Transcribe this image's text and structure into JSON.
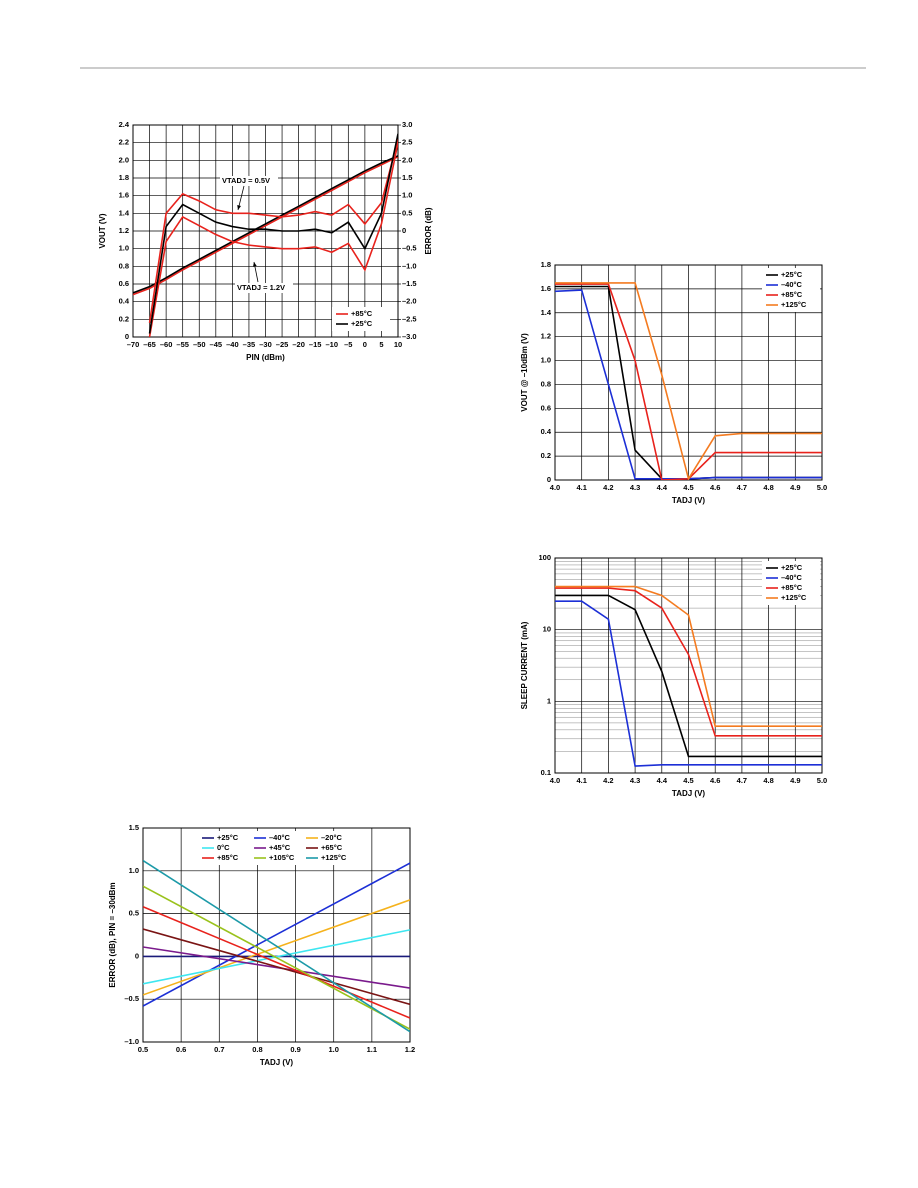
{
  "chart_data": [
    {
      "type": "line",
      "x_label": "PIN (dBm)",
      "y_label": "VOUT (V)",
      "y2_label": "ERROR (dB)",
      "annotations": [
        "VTADJ = 0.5V",
        "VTADJ = 1.2V"
      ],
      "xlim": [
        -70,
        10
      ],
      "ylim": [
        0,
        2.4
      ],
      "y2lim": [
        -3,
        3
      ],
      "grid": true,
      "legend": "lower right",
      "xticks": [
        {
          "value": -70,
          "label": "–70"
        },
        {
          "value": -65,
          "label": "–65"
        },
        {
          "value": -60,
          "label": "–60"
        },
        {
          "value": -55,
          "label": "–55"
        },
        {
          "value": -50,
          "label": "–50"
        },
        {
          "value": -45,
          "label": "–45"
        },
        {
          "value": -40,
          "label": "–40"
        },
        {
          "value": -35,
          "label": "–35"
        },
        {
          "value": -30,
          "label": "–30"
        },
        {
          "value": -25,
          "label": "–25"
        },
        {
          "value": -20,
          "label": "–20"
        },
        {
          "value": -15,
          "label": "–15"
        },
        {
          "value": -10,
          "label": "–10"
        },
        {
          "value": -5,
          "label": "–5"
        },
        0,
        5,
        10
      ],
      "yticks": [
        0,
        0.2,
        0.4,
        0.6,
        0.8,
        {
          "value": 1,
          "label": "1.0"
        },
        1.2,
        1.4,
        1.6,
        1.8,
        {
          "value": 2,
          "label": "2.0"
        },
        2.2,
        2.4
      ],
      "y2ticks": [
        {
          "value": -3,
          "label": "–3.0"
        },
        {
          "value": -2.5,
          "label": "–2.5"
        },
        {
          "value": -2,
          "label": "–2.0"
        },
        {
          "value": -1.5,
          "label": "–1.5"
        },
        {
          "value": -1,
          "label": "–1.0"
        },
        {
          "value": -0.5,
          "label": "–0.5"
        },
        0,
        0.5,
        {
          "value": 1,
          "label": "1.0"
        },
        1.5,
        {
          "value": 2,
          "label": "2.0"
        },
        2.5,
        {
          "value": 3,
          "label": "3.0"
        }
      ],
      "x": [
        -70,
        -65,
        -60,
        -55,
        -50,
        -45,
        -40,
        -35,
        -30,
        -25,
        -20,
        -15,
        -10,
        -5,
        0,
        5,
        10
      ],
      "series": [
        {
          "name": "+85°C",
          "color": "#e8221c",
          "values": [
            0.48,
            0.55,
            0.65,
            0.76,
            0.86,
            0.96,
            1.06,
            1.16,
            1.26,
            1.36,
            1.46,
            1.56,
            1.66,
            1.76,
            1.86,
            1.95,
            2.04
          ]
        },
        {
          "name": "+25°C",
          "color": "#000000",
          "values": [
            0.5,
            0.57,
            0.67,
            0.78,
            0.88,
            0.98,
            1.08,
            1.18,
            1.28,
            1.38,
            1.48,
            1.58,
            1.68,
            1.78,
            1.88,
            1.97,
            2.05
          ]
        },
        {
          "name": "+85°C",
          "color": "#e8221c",
          "axis": "y2",
          "values": [
            null,
            -2.6,
            0.5,
            1.05,
            0.85,
            0.6,
            0.5,
            0.5,
            0.45,
            0.4,
            0.45,
            0.55,
            0.45,
            0.75,
            0.2,
            0.8,
            2.6
          ]
        },
        {
          "name": "+85°C",
          "color": "#e8221c",
          "axis": "y2",
          "values": [
            null,
            -3,
            -0.3,
            0.4,
            0.15,
            -0.1,
            -0.3,
            -0.4,
            -0.45,
            -0.5,
            -0.5,
            -0.45,
            -0.6,
            -0.35,
            -1.1,
            0.2,
            2.5
          ]
        },
        {
          "name": "+25°C",
          "color": "#000000",
          "axis": "y2",
          "values": [
            null,
            -2.9,
            0.125,
            0.75,
            0.5,
            0.25,
            0.125,
            0.05,
            0.05,
            0,
            0,
            0.05,
            -0.05,
            0.25,
            -0.5,
            0.5,
            2.75
          ]
        }
      ]
    },
    {
      "type": "line",
      "x_label": "TADJ (V)",
      "y_label": "VOUT @ –10dBm (V)",
      "xlim": [
        4,
        5
      ],
      "ylim": [
        0,
        1.8
      ],
      "grid": true,
      "legend": "upper right",
      "xticks": [
        {
          "value": 4,
          "label": "4.0"
        },
        4.1,
        4.2,
        4.3,
        4.4,
        4.5,
        4.6,
        4.7,
        4.8,
        4.9,
        {
          "value": 5,
          "label": "5.0"
        }
      ],
      "yticks": [
        0,
        0.2,
        0.4,
        0.6,
        0.8,
        {
          "value": 1,
          "label": "1.0"
        },
        1.2,
        1.4,
        1.6,
        1.8
      ],
      "x": [
        4,
        4.1,
        4.2,
        4.3,
        4.4,
        4.5,
        4.6,
        4.7,
        4.8,
        4.9,
        5
      ],
      "series": [
        {
          "name": "+25°C",
          "color": "#000000",
          "values": [
            1.62,
            1.62,
            1.62,
            0.25,
            0.01,
            0.01,
            0.02,
            0.02,
            0.02,
            0.02,
            0.02
          ]
        },
        {
          "name": "–40°C",
          "color": "#1c2fd6",
          "values": [
            1.58,
            1.59,
            0.8,
            0.01,
            0.01,
            0.01,
            0.02,
            0.02,
            0.02,
            0.02,
            0.02
          ]
        },
        {
          "name": "+85°C",
          "color": "#e8221c",
          "values": [
            1.64,
            1.64,
            1.64,
            1.0,
            0,
            0.01,
            0.23,
            0.23,
            0.23,
            0.23,
            0.23
          ]
        },
        {
          "name": "+125°C",
          "color": "#f47b20",
          "values": [
            1.65,
            1.65,
            1.65,
            1.65,
            0.88,
            0.01,
            0.37,
            0.39,
            0.39,
            0.39,
            0.39
          ]
        }
      ]
    },
    {
      "type": "line",
      "x_label": "TADJ (V)",
      "y_label": "SLEEP CURRENT (mA)",
      "xlim": [
        4,
        5
      ],
      "ylim": [
        0.1,
        100
      ],
      "log": true,
      "grid": true,
      "legend": "upper right",
      "xticks": [
        {
          "value": 4,
          "label": "4.0"
        },
        4.1,
        4.2,
        4.3,
        4.4,
        4.5,
        4.6,
        4.7,
        4.8,
        4.9,
        {
          "value": 5,
          "label": "5.0"
        }
      ],
      "yticks": [
        0.1,
        1,
        10,
        100
      ],
      "x": [
        4,
        4.1,
        4.2,
        4.3,
        4.4,
        4.5,
        4.6,
        4.7,
        4.8,
        4.9,
        5
      ],
      "series": [
        {
          "name": "+25°C",
          "color": "#000000",
          "values": [
            30,
            30,
            30,
            19,
            2.6,
            0.17,
            0.17,
            0.17,
            0.17,
            0.17,
            0.17
          ]
        },
        {
          "name": "–40°C",
          "color": "#1c2fd6",
          "values": [
            25,
            25,
            14,
            0.125,
            0.13,
            0.13,
            0.13,
            0.13,
            0.13,
            0.13,
            0.13
          ]
        },
        {
          "name": "+85°C",
          "color": "#e8221c",
          "values": [
            38,
            38,
            38,
            35,
            20,
            4.5,
            0.33,
            0.33,
            0.33,
            0.33,
            0.33
          ]
        },
        {
          "name": "+125°C",
          "color": "#f47b20",
          "values": [
            40,
            40,
            40,
            40,
            30,
            16,
            0.45,
            0.45,
            0.45,
            0.45,
            0.45
          ]
        }
      ]
    },
    {
      "type": "line",
      "x_label": "TADJ (V)",
      "y_label": "ERROR (dB), PIN = –30dBm",
      "xlim": [
        0.5,
        1.2
      ],
      "ylim": [
        -1,
        1.5
      ],
      "grid": true,
      "legend": "upper center",
      "xticks": [
        0.5,
        0.6,
        0.7,
        0.8,
        0.9,
        {
          "value": 1,
          "label": "1.0"
        },
        1.1,
        1.2
      ],
      "yticks": [
        {
          "value": -1,
          "label": "–1.0"
        },
        {
          "value": -0.5,
          "label": "–0.5"
        },
        0,
        0.5,
        {
          "value": 1,
          "label": "1.0"
        },
        1.5
      ],
      "x": [
        0.5,
        1.2
      ],
      "series": [
        {
          "name": "+25°C",
          "color": "#1a1a7a",
          "values": [
            0,
            0
          ]
        },
        {
          "name": "–40°C",
          "color": "#1c2fd6",
          "values": [
            -0.58,
            1.09
          ]
        },
        {
          "name": "–20°C",
          "color": "#f5b21c",
          "values": [
            -0.45,
            0.66
          ]
        },
        {
          "name": "0°C",
          "color": "#3de6f0",
          "values": [
            -0.32,
            0.31
          ]
        },
        {
          "name": "+45°C",
          "color": "#7a1a8c",
          "values": [
            0.11,
            -0.37
          ]
        },
        {
          "name": "+65°C",
          "color": "#7a1414",
          "values": [
            0.32,
            -0.56
          ]
        },
        {
          "name": "+85°C",
          "color": "#e8221c",
          "values": [
            0.58,
            -0.72
          ]
        },
        {
          "name": "+105°C",
          "color": "#9ac21c",
          "values": [
            0.82,
            -0.85
          ]
        },
        {
          "name": "+125°C",
          "color": "#1c9aa8",
          "values": [
            1.12,
            -0.88
          ]
        }
      ]
    }
  ]
}
